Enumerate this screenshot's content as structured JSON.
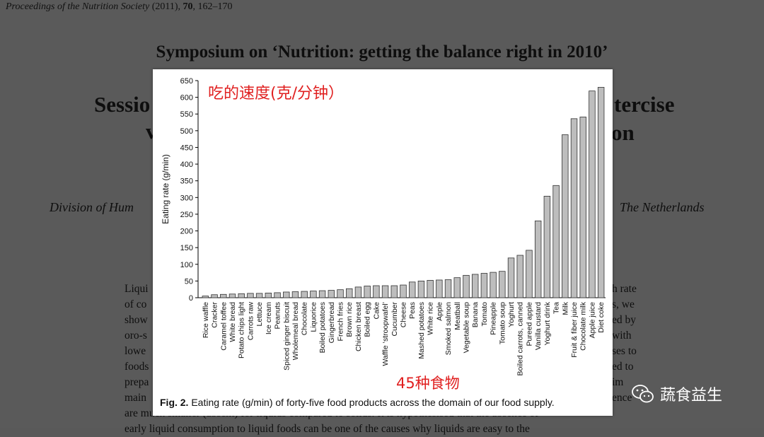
{
  "background": {
    "journal": "Proceedings of the Nutrition Society",
    "journal_rest": " (2011), ",
    "volume": "70",
    "pages": ", 162–170",
    "symposium": "Symposium on ‘Nutrition: getting the balance right in 2010’",
    "session_left": "Sessio",
    "session_right": "tercise",
    "session_left2": "v",
    "session_right2": "on",
    "division_left": "Division of Hum",
    "division_right": "The Netherlands",
    "body_left": [
      "Liqui",
      "of co",
      "show",
      "oro-s",
      "lowe",
      "foods",
      "prepa",
      "main"
    ],
    "body_right": [
      "h rate",
      "s, we",
      "ed by",
      "with",
      "ses to",
      "ed to",
      "im",
      "ence"
    ],
    "body_bottom": "are much smaller (absent) for liquids compared to solids. It is hypothesised that the absence of",
    "body_bottom2": "early liquid consumption to liquid foods can be one of the causes why liquids are easy to the"
  },
  "overlay": {
    "title_cn": "吃的速度(克/分钟）",
    "count_cn": "45种食物",
    "caption_label": "Fig. 2.",
    "caption_text": " Eating rate (g/min) of forty-five food products across the domain of our food supply."
  },
  "watermark": {
    "text": "蔬食益生",
    "icon": "wechat-icon"
  },
  "colors": {
    "annotation_red": "#e02020",
    "bar_fill": "#bdbdbd",
    "bar_stroke": "#333333"
  },
  "chart_data": {
    "type": "bar",
    "title": "Fig. 2. Eating rate (g/min) of forty-five food products across the domain of our food supply.",
    "xlabel": "",
    "ylabel": "Eating rate (g/min)",
    "ylim": [
      0,
      650
    ],
    "yticks": [
      0,
      50,
      100,
      150,
      200,
      250,
      300,
      350,
      400,
      450,
      500,
      550,
      600,
      650
    ],
    "categories": [
      "Rice waffle",
      "Cracker",
      "Caramel toffee",
      "White bread",
      "Potato chips light",
      "Carrots raw",
      "Lettuce",
      "Ice cream",
      "Peanuts",
      "Spiced ginger biscuit",
      "Wholemeal bread",
      "Chocolate",
      "Liquorice",
      "Boiled potatoes",
      "Gingerbread",
      "French fries",
      "Brown rice",
      "Chicken breast",
      "Boiled egg",
      "Cake",
      "Waffle ‘stroopwafel’",
      "Cucumber",
      "Cheese",
      "Peas",
      "Mashed potatoes",
      "White rice",
      "Apple",
      "Smoked salmon",
      "Meatball",
      "Vegetable soup",
      "Banana",
      "Tomato",
      "Pineapple",
      "Tomato soup",
      "Yoghurt",
      "Boiled carrots, canned",
      "Pureed apple",
      "Vanilla custard",
      "Yoghurt drink",
      "Tea",
      "Milk",
      "Fruit & fiber juice",
      "Chocolate milk",
      "Apple juice",
      "Diet coke"
    ],
    "values": [
      5,
      9,
      10,
      11,
      12,
      13,
      13,
      14,
      15,
      17,
      18,
      19,
      20,
      21,
      22,
      24,
      27,
      32,
      35,
      36,
      36,
      36,
      38,
      47,
      50,
      52,
      53,
      54,
      60,
      67,
      70,
      73,
      76,
      79,
      119,
      127,
      142,
      230,
      304,
      336,
      488,
      536,
      541,
      619,
      630
    ]
  }
}
